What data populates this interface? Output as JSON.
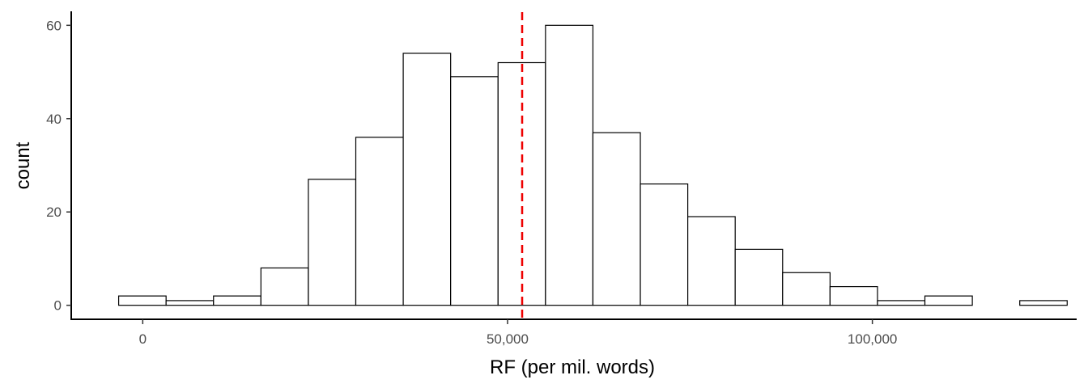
{
  "chart_data": {
    "type": "bar",
    "subtype": "histogram",
    "xlabel": "RF (per mil. words)",
    "ylabel": "count",
    "xlim": [
      -9800,
      128000
    ],
    "ylim": [
      -3,
      63
    ],
    "x_ticks": [
      {
        "value": 0,
        "label": "0"
      },
      {
        "value": 50000,
        "label": "50,000"
      },
      {
        "value": 100000,
        "label": "100,000"
      }
    ],
    "y_ticks": [
      {
        "value": 0,
        "label": "0"
      },
      {
        "value": 20,
        "label": "20"
      },
      {
        "value": 40,
        "label": "40"
      },
      {
        "value": 60,
        "label": "60"
      }
    ],
    "bins": [
      {
        "x0": -3300,
        "x1": 3200,
        "count": 2
      },
      {
        "x0": 3200,
        "x1": 9700,
        "count": 1
      },
      {
        "x0": 9700,
        "x1": 16200,
        "count": 2
      },
      {
        "x0": 16200,
        "x1": 22700,
        "count": 8
      },
      {
        "x0": 22700,
        "x1": 29200,
        "count": 27
      },
      {
        "x0": 29200,
        "x1": 35700,
        "count": 36
      },
      {
        "x0": 35700,
        "x1": 42200,
        "count": 54
      },
      {
        "x0": 42200,
        "x1": 48700,
        "count": 49
      },
      {
        "x0": 48700,
        "x1": 55200,
        "count": 52
      },
      {
        "x0": 55200,
        "x1": 61700,
        "count": 60
      },
      {
        "x0": 61700,
        "x1": 68200,
        "count": 37
      },
      {
        "x0": 68200,
        "x1": 74700,
        "count": 26
      },
      {
        "x0": 74700,
        "x1": 81200,
        "count": 19
      },
      {
        "x0": 81200,
        "x1": 87700,
        "count": 12
      },
      {
        "x0": 87700,
        "x1": 94200,
        "count": 7
      },
      {
        "x0": 94200,
        "x1": 100700,
        "count": 4
      },
      {
        "x0": 100700,
        "x1": 107200,
        "count": 1
      },
      {
        "x0": 107200,
        "x1": 113700,
        "count": 2
      },
      {
        "x0": 113700,
        "x1": 120200,
        "count": 0
      },
      {
        "x0": 120200,
        "x1": 126700,
        "count": 1
      }
    ],
    "reference_line": {
      "x": 52000,
      "color": "#ee0000",
      "style": "dashed"
    },
    "bar_fill": "#ffffff",
    "bar_stroke": "#000000",
    "grid": false,
    "legend": "none"
  }
}
